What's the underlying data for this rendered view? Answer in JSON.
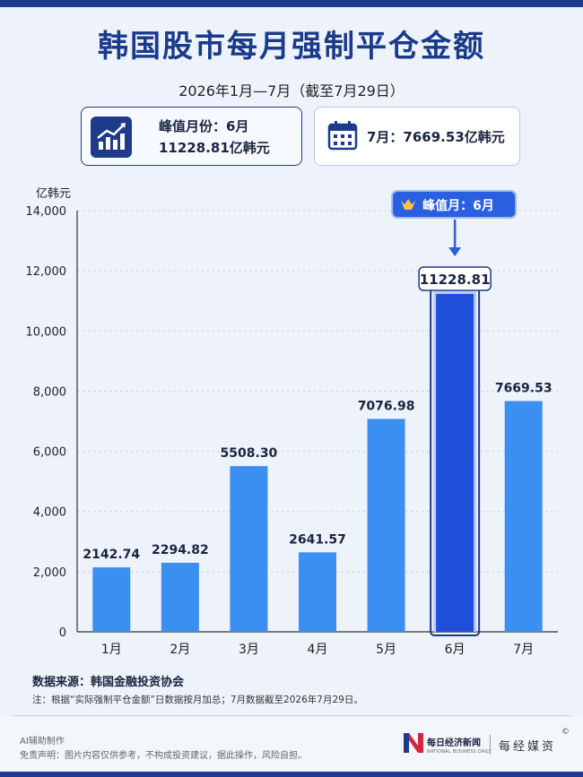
{
  "title": "韩国股市每月强制平仓金额",
  "subtitle": "2026年1月—7月（截至7月29日）",
  "peak_box": {
    "line1": "峰值月份：6月",
    "line2": "11228.81亿韩元"
  },
  "july_box": {
    "text": "7月：7669.53亿韩元"
  },
  "unit_label": "亿韩元",
  "peak_callout": "峰值月：6月",
  "source": "数据来源：韩国金融投资协会",
  "note": "注：根据“实际强制平仓金额”日数据按月加总；7月数据截至2026年7月29日。",
  "ai_label": "AI辅助制作",
  "disclaimer": "免责声明：图片内容仅供参考，不构成投资建议，据此操作，风险自担。",
  "logo": {
    "cn": "每日经济新闻",
    "en": "NATIONAL BUSINESS DAILY",
    "right": "每经媒资",
    "copyright": "©"
  },
  "colors": {
    "title": "#1a3a8c",
    "bar": "#3b8ff0",
    "peak_bar": "#1f4fd8",
    "callout": "#2a5fe0"
  },
  "chart_data": {
    "type": "bar",
    "categories": [
      "1月",
      "2月",
      "3月",
      "4月",
      "5月",
      "6月",
      "7月"
    ],
    "values": [
      2142.74,
      2294.82,
      5508.3,
      2641.57,
      7076.98,
      11228.81,
      7669.53
    ],
    "value_labels": [
      "2142.74",
      "2294.82",
      "5508.30",
      "2641.57",
      "7076.98",
      "11228.81",
      "7669.53"
    ],
    "ylabel": "亿韩元",
    "ylim": [
      0,
      14000
    ],
    "yticks": [
      "0",
      "2,000",
      "4,000",
      "6,000",
      "8,000",
      "10,000",
      "12,000",
      "14,000"
    ],
    "highlight_index": 5,
    "grid": true
  }
}
